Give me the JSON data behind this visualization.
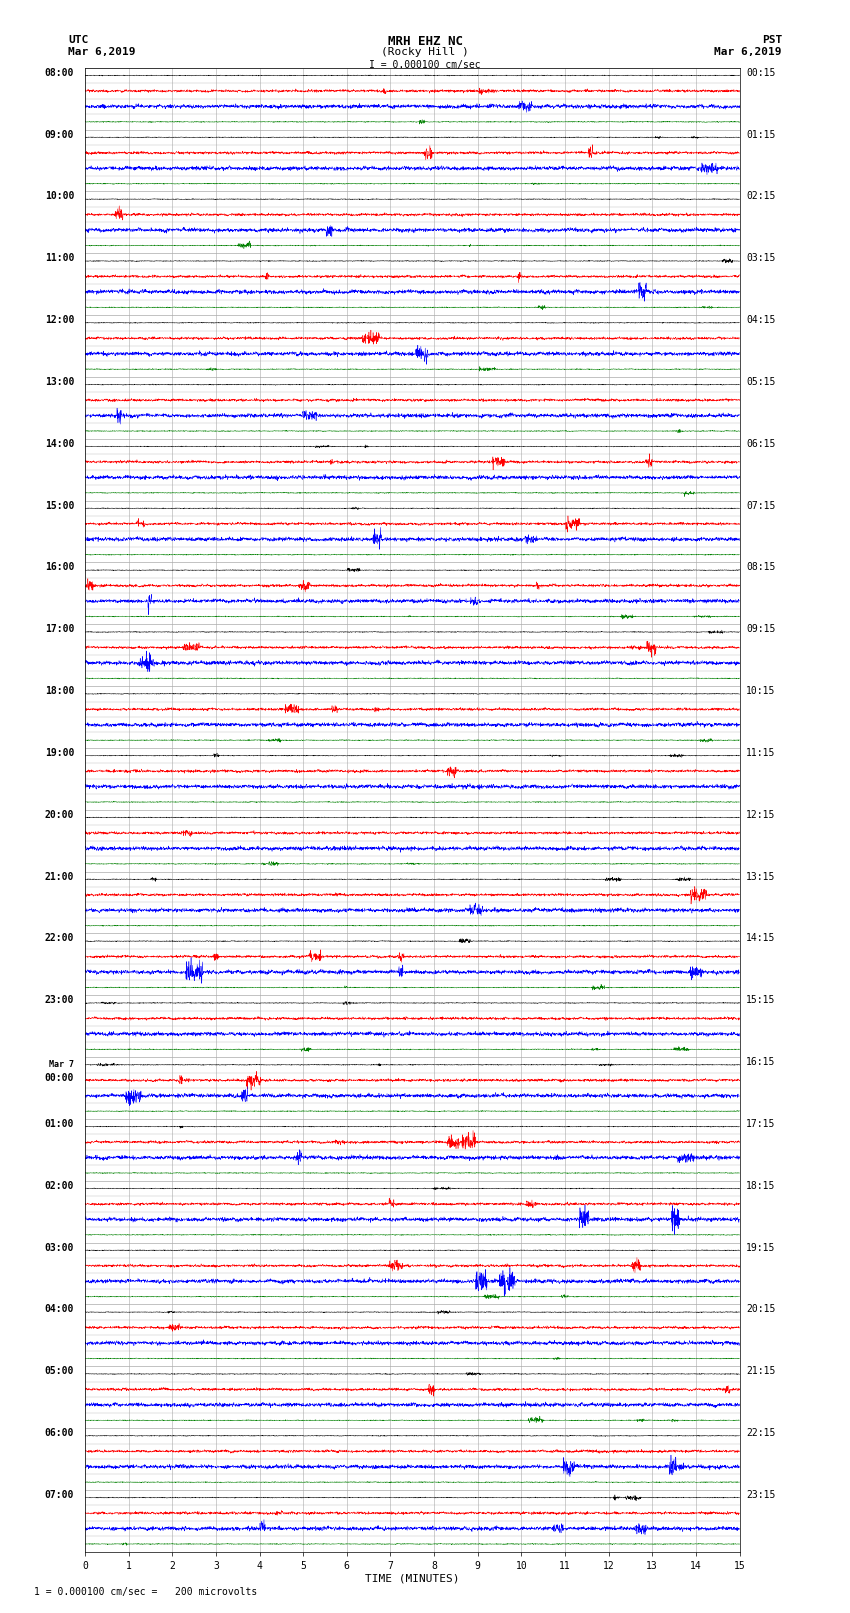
{
  "title_line1": "MRH EHZ NC",
  "title_line2": "(Rocky Hill )",
  "scale_text": "I = 0.000100 cm/sec",
  "utc_label": "UTC",
  "utc_date": "Mar 6,2019",
  "pst_label": "PST",
  "pst_date": "Mar 6,2019",
  "xlabel": "TIME (MINUTES)",
  "footer_text": "1 = 0.000100 cm/sec =   200 microvolts",
  "left_times": [
    "08:00",
    "09:00",
    "10:00",
    "11:00",
    "12:00",
    "13:00",
    "14:00",
    "15:00",
    "16:00",
    "17:00",
    "18:00",
    "19:00",
    "20:00",
    "21:00",
    "22:00",
    "23:00",
    "Mar 7\n00:00",
    "01:00",
    "02:00",
    "03:00",
    "04:00",
    "05:00",
    "06:00",
    "07:00"
  ],
  "right_times": [
    "00:15",
    "01:15",
    "02:15",
    "03:15",
    "04:15",
    "05:15",
    "06:15",
    "07:15",
    "08:15",
    "09:15",
    "10:15",
    "11:15",
    "12:15",
    "13:15",
    "14:15",
    "15:15",
    "16:15",
    "17:15",
    "18:15",
    "19:15",
    "20:15",
    "21:15",
    "22:15",
    "23:15"
  ],
  "num_rows": 24,
  "traces_per_row": 4,
  "minutes": 15,
  "trace_colors": [
    "black",
    "red",
    "blue",
    "green"
  ],
  "trace_amplitudes": [
    0.035,
    0.12,
    0.18,
    0.04
  ],
  "bg_color": "white",
  "grid_color": "#aaaaaa",
  "tick_label_fontsize": 7,
  "title_fontsize": 9,
  "header_fontsize": 8,
  "samples_per_minute": 200
}
